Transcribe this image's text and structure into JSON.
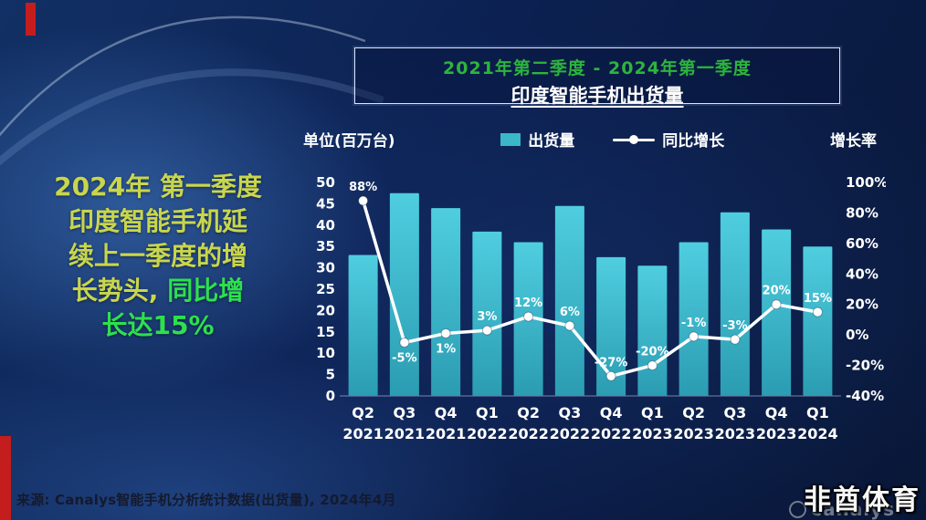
{
  "title_box": {
    "range": "2021年第二季度 - 2024年第一季度",
    "title": "印度智能手机出货量"
  },
  "side_text": {
    "line1": "2024年 第一季度",
    "line2": "印度智能手机延",
    "line3": "续上一季度的增",
    "line4_part1": "长势头, ",
    "line4_part2": "同比增",
    "line5": "长达15%"
  },
  "legend": {
    "unit": "单位(百万台)",
    "bar_label": "出货量",
    "line_label": "同比增长",
    "rate_label": "增长率"
  },
  "source": "来源: Canalys智能手机分析统计数据(出货量), 2024年4月",
  "watermark": "非酋体育",
  "logo_text": "canalys",
  "colors": {
    "bar_top": "#4fcee0",
    "bar_bottom": "#2b9cb2",
    "line": "#ffffff",
    "accent_green": "#2ee04e",
    "accent_yellow_green": "#c9d64c",
    "red_mark": "#c41d1d"
  },
  "chart_data": {
    "type": "bar+line",
    "title": "印度智能手机出货量",
    "subtitle": "2021年第二季度 - 2024年第一季度",
    "grid": false,
    "legend_position": "top",
    "quarters": [
      "Q2",
      "Q3",
      "Q4",
      "Q1",
      "Q2",
      "Q3",
      "Q4",
      "Q1",
      "Q2",
      "Q3",
      "Q4",
      "Q1"
    ],
    "years": [
      "2021",
      "2021",
      "2021",
      "2022",
      "2022",
      "2022",
      "2022",
      "2023",
      "2023",
      "2023",
      "2023",
      "2024"
    ],
    "bar_series": {
      "name": "出货量",
      "unit": "百万台",
      "values": [
        33,
        47.5,
        44,
        38.5,
        36,
        44.5,
        32.5,
        30.5,
        36,
        43,
        39,
        35
      ]
    },
    "line_series": {
      "name": "同比增长",
      "values": [
        88,
        -5,
        1,
        3,
        12,
        6,
        -27,
        -20,
        -1,
        -3,
        20,
        15
      ],
      "labels": [
        "88%",
        "-5%",
        "1%",
        "3%",
        "12%",
        "6%",
        "-27%",
        "-20%",
        "-1%",
        "-3%",
        "20%",
        "15%"
      ],
      "label_above": [
        true,
        false,
        false,
        true,
        true,
        true,
        true,
        true,
        true,
        true,
        true,
        true
      ]
    },
    "left_axis": {
      "min": 0,
      "max": 50,
      "step": 5,
      "ticks": [
        "50",
        "45",
        "40",
        "35",
        "30",
        "25",
        "20",
        "15",
        "10",
        "5",
        "0"
      ]
    },
    "right_axis": {
      "min": -40,
      "max": 100,
      "step": 20,
      "ticks": [
        "100%",
        "80%",
        "60%",
        "40%",
        "20%",
        "0%",
        "-20%",
        "-40%"
      ]
    }
  }
}
